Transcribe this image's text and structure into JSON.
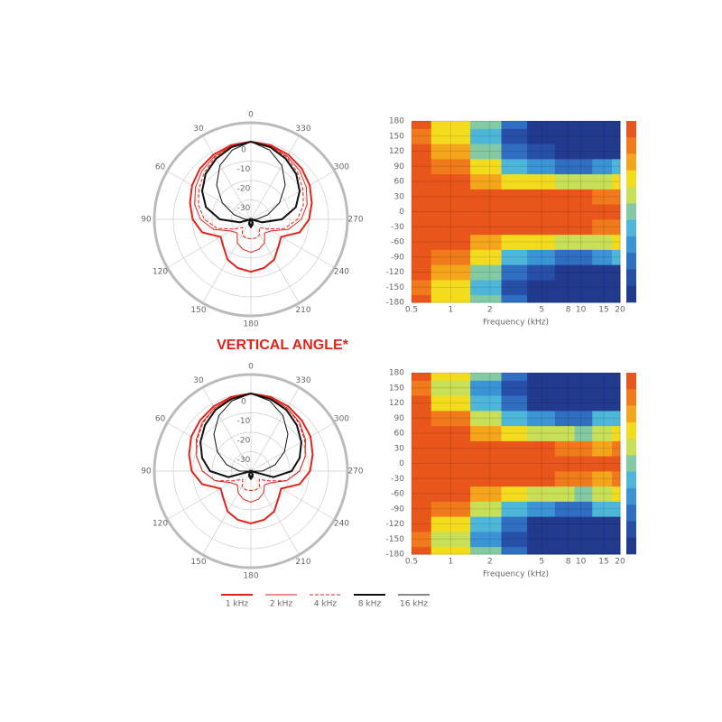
{
  "heading": "VERTICAL ANGLE*",
  "chart_data": [
    {
      "type": "polar",
      "rlim": [
        -40,
        0
      ],
      "rticks": [
        0,
        -10,
        -20,
        -30
      ],
      "thetaticks": [
        0,
        30,
        60,
        90,
        120,
        150,
        180,
        210,
        240,
        270,
        300,
        330
      ],
      "theta": [
        0,
        15,
        30,
        45,
        60,
        75,
        90,
        105,
        120,
        135,
        150,
        165,
        180,
        195,
        210,
        225,
        240,
        255,
        270,
        285,
        300,
        315,
        330,
        345
      ],
      "series": [
        {
          "name": "1 kHz",
          "color": "#e2231a",
          "width": 2,
          "dash": false,
          "values": [
            0,
            -0.5,
            -1.5,
            -3,
            -5,
            -7.5,
            -10,
            -14,
            -22,
            -20,
            -16,
            -14,
            -13,
            -14,
            -16,
            -20,
            -22,
            -14,
            -10,
            -7.5,
            -5,
            -3,
            -1.5,
            -0.5
          ]
        },
        {
          "name": "2 kHz",
          "color": "#e2231a",
          "width": 1,
          "dash": false,
          "values": [
            0,
            -1,
            -2.5,
            -4.5,
            -7,
            -10,
            -14,
            -20,
            -28,
            -30,
            -26,
            -24,
            -23,
            -24,
            -26,
            -30,
            -28,
            -20,
            -14,
            -10,
            -7,
            -4.5,
            -2.5,
            -1
          ]
        },
        {
          "name": "4 kHz",
          "color": "#e2231a",
          "width": 1,
          "dash": true,
          "values": [
            0,
            -1,
            -3,
            -6,
            -9,
            -12,
            -16,
            -22,
            -30,
            -34,
            -31,
            -30,
            -30,
            -30,
            -31,
            -34,
            -30,
            -22,
            -16,
            -12,
            -9,
            -6,
            -3,
            -1
          ]
        },
        {
          "name": "8 kHz",
          "color": "#111111",
          "width": 2,
          "dash": false,
          "values": [
            0,
            -1.5,
            -4,
            -7,
            -11,
            -16,
            -24,
            -34,
            -40,
            -40,
            -38,
            -37,
            -36,
            -37,
            -38,
            -40,
            -40,
            -34,
            -24,
            -16,
            -11,
            -7,
            -4,
            -1.5
          ]
        },
        {
          "name": "16 kHz",
          "color": "#111111",
          "width": 1,
          "dash": false,
          "values": [
            0,
            -3,
            -8,
            -15,
            -23,
            -31,
            -37,
            -40,
            -40,
            -40,
            -39,
            -38,
            -37,
            -38,
            -39,
            -40,
            -40,
            -40,
            -37,
            -31,
            -23,
            -15,
            -8,
            -3
          ]
        }
      ]
    },
    {
      "type": "heatmap",
      "xlabel": "Frequency (kHz)",
      "xlim": [
        0.5,
        20
      ],
      "ylim": [
        -180,
        180
      ],
      "xlog": true,
      "xticks": [
        0.5,
        1,
        2,
        5,
        8,
        10,
        15,
        20
      ],
      "yticks": [
        180,
        150,
        120,
        90,
        60,
        30,
        0,
        -30,
        -60,
        -90,
        -120,
        -150,
        -180
      ],
      "zlim": [
        -33,
        0
      ],
      "colors": [
        "#e8561c",
        "#f07a1c",
        "#f5a51c",
        "#f3dc1e",
        "#c8df58",
        "#82c9a4",
        "#4eb7d9",
        "#3b94d3",
        "#2f6ec0",
        "#284fa8",
        "#223a8e"
      ],
      "x": [
        0.5,
        1,
        2,
        3,
        5,
        8,
        10,
        15,
        20
      ],
      "y": [
        -180,
        -150,
        -120,
        -90,
        -60,
        -30,
        0,
        30,
        60,
        90,
        120,
        150,
        180
      ],
      "z": [
        [
          -2,
          -10,
          -16,
          -24,
          -30,
          -32,
          -32,
          -32,
          -32
        ],
        [
          -4,
          -11,
          -20,
          -27,
          -31,
          -32,
          -32,
          -32,
          -32
        ],
        [
          -2,
          -8,
          -17,
          -25,
          -29,
          -31,
          -32,
          -31,
          -30
        ],
        [
          -1,
          -5,
          -11,
          -18,
          -22,
          -24,
          -25,
          -22,
          -18
        ],
        [
          0,
          -2,
          -6,
          -9,
          -11,
          -12,
          -14,
          -13,
          -10
        ],
        [
          0,
          0,
          -1,
          -1,
          -2,
          -2,
          -2,
          -4,
          -3
        ],
        [
          0,
          0,
          0,
          0,
          0,
          0,
          0,
          0,
          0
        ],
        [
          0,
          0,
          -1,
          -1,
          -2,
          -2,
          -2,
          -4,
          -3
        ],
        [
          0,
          -2,
          -6,
          -9,
          -11,
          -12,
          -14,
          -13,
          -10
        ],
        [
          -1,
          -5,
          -11,
          -18,
          -22,
          -24,
          -25,
          -22,
          -18
        ],
        [
          -2,
          -8,
          -17,
          -25,
          -29,
          -31,
          -32,
          -31,
          -30
        ],
        [
          -4,
          -11,
          -20,
          -27,
          -31,
          -32,
          -32,
          -32,
          -32
        ],
        [
          -2,
          -10,
          -16,
          -24,
          -30,
          -32,
          -32,
          -32,
          -32
        ]
      ]
    },
    {
      "type": "polar",
      "rlim": [
        -40,
        0
      ],
      "rticks": [
        0,
        -10,
        -20,
        -30
      ],
      "thetaticks": [
        0,
        30,
        60,
        90,
        120,
        150,
        180,
        210,
        240,
        270,
        300,
        330
      ],
      "theta": [
        0,
        15,
        30,
        45,
        60,
        75,
        90,
        105,
        120,
        135,
        150,
        165,
        180,
        195,
        210,
        225,
        240,
        255,
        270,
        285,
        300,
        315,
        330,
        345
      ],
      "series": [
        {
          "name": "1 kHz",
          "color": "#e2231a",
          "width": 2,
          "dash": false,
          "values": [
            0,
            -0.5,
            -1.5,
            -3,
            -4.5,
            -7,
            -9.5,
            -14,
            -22,
            -20,
            -16,
            -14,
            -13,
            -14,
            -16,
            -20,
            -22,
            -14,
            -9.5,
            -7,
            -4.5,
            -3,
            -1.5,
            -0.5
          ]
        },
        {
          "name": "2 kHz",
          "color": "#e2231a",
          "width": 1,
          "dash": false,
          "values": [
            0,
            -1,
            -2.5,
            -4.5,
            -7.5,
            -11,
            -15,
            -21,
            -28,
            -30,
            -27,
            -25,
            -24,
            -25,
            -27,
            -30,
            -28,
            -21,
            -15,
            -11,
            -7.5,
            -4.5,
            -2.5,
            -1
          ]
        },
        {
          "name": "4 kHz",
          "color": "#e2231a",
          "width": 1,
          "dash": true,
          "values": [
            0,
            -1,
            -2.5,
            -5,
            -8,
            -11,
            -15,
            -21,
            -30,
            -34,
            -31,
            -30,
            -30,
            -30,
            -31,
            -34,
            -30,
            -21,
            -15,
            -11,
            -8,
            -5,
            -2.5,
            -1
          ]
        },
        {
          "name": "8 kHz",
          "color": "#111111",
          "width": 2,
          "dash": false,
          "values": [
            0,
            -1.5,
            -3.5,
            -6.5,
            -10,
            -14,
            -19,
            -28,
            -40,
            -40,
            -38,
            -37,
            -36,
            -37,
            -38,
            -40,
            -40,
            -28,
            -19,
            -14,
            -10,
            -6.5,
            -3.5,
            -1.5
          ]
        },
        {
          "name": "16 kHz",
          "color": "#111111",
          "width": 1,
          "dash": false,
          "values": [
            0,
            -2.5,
            -7,
            -13,
            -20,
            -27,
            -34,
            -40,
            -40,
            -40,
            -39,
            -38,
            -37,
            -38,
            -39,
            -40,
            -40,
            -40,
            -34,
            -27,
            -20,
            -13,
            -7,
            -2.5
          ]
        }
      ]
    },
    {
      "type": "heatmap",
      "xlabel": "Frequency (kHz)",
      "xlim": [
        0.5,
        20
      ],
      "ylim": [
        -180,
        180
      ],
      "xlog": true,
      "xticks": [
        0.5,
        1,
        2,
        5,
        8,
        10,
        15,
        20
      ],
      "yticks": [
        180,
        150,
        120,
        90,
        60,
        30,
        0,
        -30,
        -60,
        -90,
        -120,
        -150,
        -180
      ],
      "zlim": [
        -33,
        0
      ],
      "colors": [
        "#e8561c",
        "#f07a1c",
        "#f5a51c",
        "#f3dc1e",
        "#c8df58",
        "#82c9a4",
        "#4eb7d9",
        "#3b94d3",
        "#2f6ec0",
        "#284fa8",
        "#223a8e"
      ],
      "x": [
        0.5,
        1,
        2,
        3,
        5,
        8,
        10,
        15,
        20
      ],
      "y": [
        -180,
        -150,
        -120,
        -90,
        -60,
        -30,
        0,
        30,
        60,
        90,
        120,
        150,
        180
      ],
      "z": [
        [
          -2,
          -10,
          -17,
          -25,
          -31,
          -32,
          -32,
          -32,
          -32
        ],
        [
          -4,
          -12,
          -21,
          -28,
          -32,
          -32,
          -32,
          -32,
          -32
        ],
        [
          -2,
          -9,
          -18,
          -26,
          -30,
          -32,
          -32,
          -30,
          -30
        ],
        [
          -1,
          -5,
          -12,
          -19,
          -23,
          -25,
          -26,
          -19,
          -20
        ],
        [
          0,
          -2,
          -6,
          -9,
          -12,
          -13,
          -15,
          -14,
          -11
        ],
        [
          0,
          0,
          -1,
          -1,
          -2,
          -3,
          -3,
          -6,
          -4
        ],
        [
          0,
          0,
          0,
          0,
          0,
          0,
          0,
          0,
          0
        ],
        [
          0,
          0,
          -1,
          -1,
          -2,
          -3,
          -3,
          -6,
          -4
        ],
        [
          0,
          -2,
          -6,
          -9,
          -12,
          -13,
          -15,
          -14,
          -11
        ],
        [
          -1,
          -5,
          -12,
          -19,
          -23,
          -25,
          -26,
          -19,
          -20
        ],
        [
          -2,
          -9,
          -18,
          -26,
          -30,
          -32,
          -32,
          -30,
          -30
        ],
        [
          -4,
          -12,
          -21,
          -28,
          -32,
          -32,
          -32,
          -32,
          -32
        ],
        [
          -2,
          -10,
          -17,
          -25,
          -31,
          -32,
          -32,
          -32,
          -32
        ]
      ]
    }
  ]
}
